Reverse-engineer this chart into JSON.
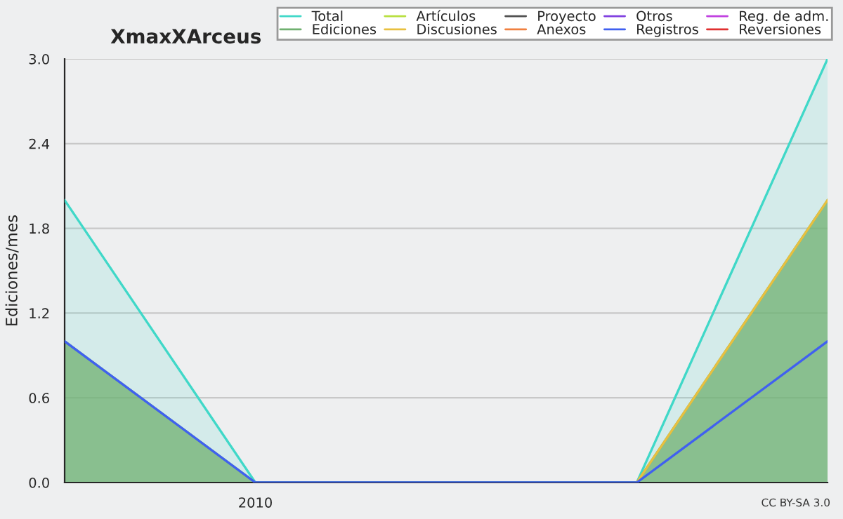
{
  "chart_data": {
    "type": "area",
    "title": "XmaxXArceus",
    "ylabel": "Ediciones/mes",
    "categories": [
      null,
      "2010",
      null,
      null,
      null
    ],
    "ylim": [
      0,
      3.0
    ],
    "yticks": [
      {
        "value": 0,
        "label": "0.0"
      },
      {
        "value": 0.6,
        "label": "0.6"
      },
      {
        "value": 1.2,
        "label": "1.2"
      },
      {
        "value": 1.8,
        "label": "1.8"
      },
      {
        "value": 2.4,
        "label": "2.4"
      },
      {
        "value": 3.0,
        "label": "3.0"
      }
    ],
    "grid": "y",
    "legend": "top right",
    "series": [
      {
        "name": "Total",
        "color": "#40d8c8",
        "values": [
          2,
          0,
          0,
          0,
          3
        ]
      },
      {
        "name": "Ediciones",
        "color": "#70b070",
        "values": [
          1,
          0,
          0,
          0,
          2
        ]
      },
      {
        "name": "Artículos",
        "type": "line",
        "color": "#b8e040",
        "values": [
          null,
          null,
          null,
          null,
          null
        ]
      },
      {
        "name": "Discusiones",
        "type": "line",
        "color": "#e8c040",
        "values": [
          null,
          null,
          null,
          0,
          2
        ]
      },
      {
        "name": "Proyecto",
        "type": "line",
        "color": "#505050",
        "values": [
          null,
          null,
          null,
          null,
          null
        ]
      },
      {
        "name": "Anexos",
        "type": "line",
        "color": "#f08040",
        "values": [
          null,
          null,
          null,
          null,
          null
        ]
      },
      {
        "name": "Otros",
        "type": "line",
        "color": "#8040e0",
        "values": [
          null,
          null,
          null,
          null,
          null
        ]
      },
      {
        "name": "Registros",
        "type": "line",
        "color": "#4060f0",
        "values": [
          1,
          0,
          0,
          0,
          1
        ]
      },
      {
        "name": "Reg. de adm.",
        "type": "line",
        "color": "#c040e0",
        "values": [
          null,
          null,
          null,
          null,
          null
        ]
      },
      {
        "name": "Reversiones",
        "type": "line",
        "color": "#e03030",
        "values": [
          null,
          null,
          null,
          null,
          null
        ]
      }
    ],
    "annotations": [
      "CC BY-SA 3.0"
    ]
  }
}
